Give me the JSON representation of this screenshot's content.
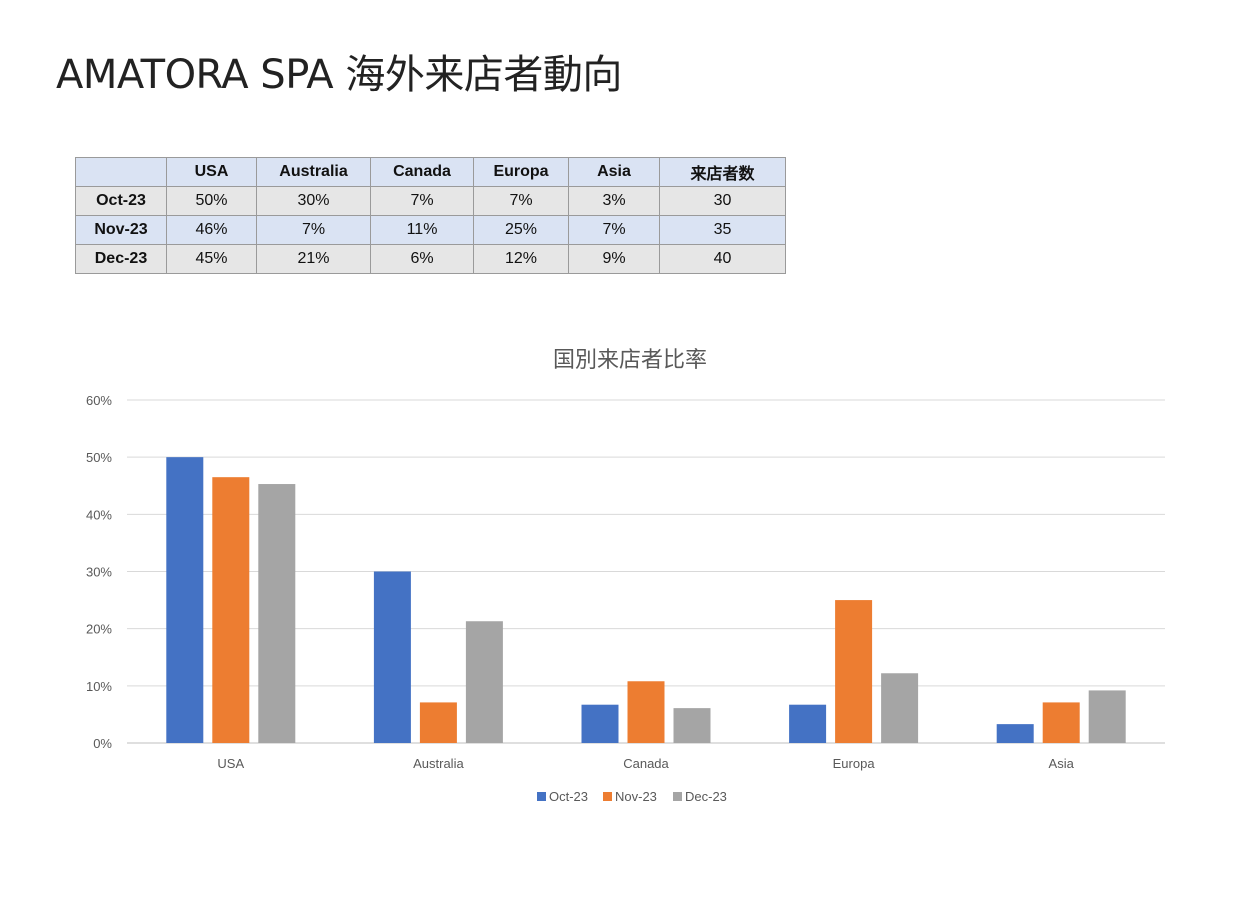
{
  "title": "AMATORA SPA 海外来店者動向",
  "table": {
    "headers": [
      "",
      "USA",
      "Australia",
      "Canada",
      "Europa",
      "Asia",
      "来店者数"
    ],
    "rows": [
      {
        "label": "Oct-23",
        "cells": [
          "50%",
          "30%",
          "7%",
          "7%",
          "3%",
          "30"
        ]
      },
      {
        "label": "Nov-23",
        "cells": [
          "46%",
          "7%",
          "11%",
          "25%",
          "7%",
          "35"
        ]
      },
      {
        "label": "Dec-23",
        "cells": [
          "45%",
          "21%",
          "6%",
          "12%",
          "9%",
          "40"
        ]
      }
    ]
  },
  "chart_data": {
    "type": "bar",
    "title": "国別来店者比率",
    "categories": [
      "USA",
      "Australia",
      "Canada",
      "Europa",
      "Asia"
    ],
    "series": [
      {
        "name": "Oct-23",
        "color": "#4472c4",
        "values": [
          50,
          30,
          6.7,
          6.7,
          3.3
        ]
      },
      {
        "name": "Nov-23",
        "color": "#ed7d31",
        "values": [
          46.5,
          7.1,
          10.8,
          25,
          7.1
        ]
      },
      {
        "name": "Dec-23",
        "color": "#a5a5a5",
        "values": [
          45.3,
          21.3,
          6.1,
          12.2,
          9.2
        ]
      }
    ],
    "y_ticks": [
      "0%",
      "10%",
      "20%",
      "30%",
      "40%",
      "50%",
      "60%"
    ],
    "ylim": [
      0,
      60
    ],
    "grid": true,
    "legend": "bottom-center",
    "xlabel": "",
    "ylabel": ""
  }
}
